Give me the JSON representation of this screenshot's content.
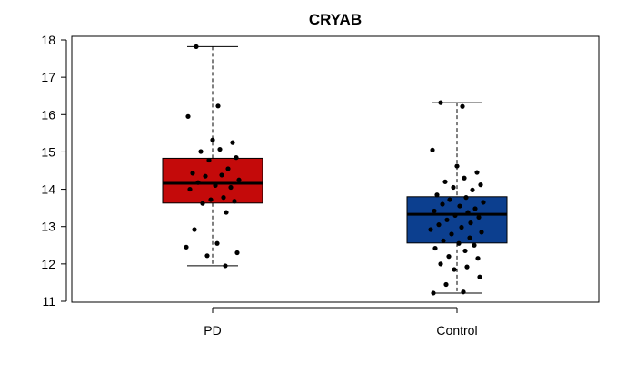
{
  "chart_data": {
    "type": "boxplot",
    "title": "CRYAB",
    "xlabel": "",
    "ylabel": "",
    "ylim": [
      11,
      18
    ],
    "yticks": [
      11,
      12,
      13,
      14,
      15,
      16,
      17,
      18
    ],
    "categories": [
      "PD",
      "Control"
    ],
    "boxes": [
      {
        "category": "PD",
        "color": "#C40A0A",
        "whisker_low": 11.95,
        "q1": 13.63,
        "median": 14.16,
        "q3": 14.83,
        "whisker_high": 17.82,
        "points": [
          17.82,
          16.23,
          15.95,
          15.32,
          15.25,
          15.07,
          15.01,
          14.85,
          14.78,
          14.55,
          14.43,
          14.38,
          14.35,
          14.25,
          14.18,
          14.1,
          14.05,
          14.0,
          13.78,
          13.72,
          13.68,
          13.62,
          13.38,
          12.92,
          12.55,
          12.45,
          12.3,
          12.22,
          11.95
        ]
      },
      {
        "category": "Control",
        "color": "#0C3F8F",
        "whisker_low": 11.22,
        "q1": 12.56,
        "median": 13.33,
        "q3": 13.8,
        "whisker_high": 16.32,
        "points": [
          16.32,
          16.22,
          15.05,
          14.62,
          14.45,
          14.3,
          14.2,
          14.12,
          14.05,
          13.98,
          13.85,
          13.78,
          13.72,
          13.65,
          13.6,
          13.55,
          13.48,
          13.42,
          13.38,
          13.3,
          13.25,
          13.18,
          13.1,
          13.05,
          12.98,
          12.92,
          12.85,
          12.8,
          12.7,
          12.62,
          12.55,
          12.5,
          12.42,
          12.35,
          12.2,
          12.15,
          12.0,
          11.92,
          11.85,
          11.65,
          11.45,
          11.25,
          11.22
        ]
      }
    ]
  }
}
